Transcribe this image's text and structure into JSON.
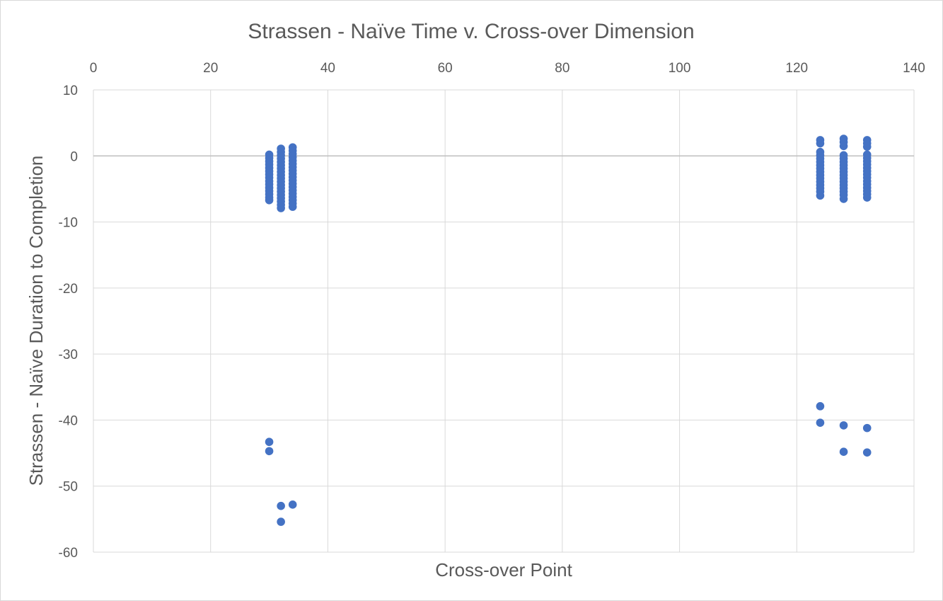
{
  "chart_data": {
    "type": "scatter",
    "title": "Strassen - Naïve Time v. Cross-over Dimension",
    "xlabel": "Cross-over Point",
    "ylabel": "Strassen - Naïve Duration to Completion",
    "xlim": [
      0,
      140
    ],
    "ylim": [
      -60,
      10
    ],
    "x_ticks": [
      0,
      20,
      40,
      60,
      80,
      100,
      120,
      140
    ],
    "y_ticks": [
      10,
      0,
      -10,
      -20,
      -30,
      -40,
      -50,
      -60
    ],
    "x_axis_position": "top",
    "grid": true,
    "legend": "none",
    "marker_color": "#4472c4",
    "points": [
      [
        30,
        0.2
      ],
      [
        30,
        -0.3
      ],
      [
        30,
        -0.8
      ],
      [
        30,
        -1.3
      ],
      [
        30,
        -1.8
      ],
      [
        30,
        -2.3
      ],
      [
        30,
        -2.8
      ],
      [
        30,
        -3.3
      ],
      [
        30,
        -3.8
      ],
      [
        30,
        -4.3
      ],
      [
        30,
        -4.8
      ],
      [
        30,
        -5.3
      ],
      [
        30,
        -5.8
      ],
      [
        30,
        -6.3
      ],
      [
        30,
        -6.7
      ],
      [
        30,
        -43.3
      ],
      [
        30,
        -44.7
      ],
      [
        32,
        1.1
      ],
      [
        32,
        0.6
      ],
      [
        32,
        0.1
      ],
      [
        32,
        -0.4
      ],
      [
        32,
        -0.9
      ],
      [
        32,
        -1.4
      ],
      [
        32,
        -1.9
      ],
      [
        32,
        -2.4
      ],
      [
        32,
        -2.9
      ],
      [
        32,
        -3.4
      ],
      [
        32,
        -3.9
      ],
      [
        32,
        -4.4
      ],
      [
        32,
        -4.9
      ],
      [
        32,
        -5.4
      ],
      [
        32,
        -5.9
      ],
      [
        32,
        -6.4
      ],
      [
        32,
        -6.9
      ],
      [
        32,
        -7.4
      ],
      [
        32,
        -7.9
      ],
      [
        32,
        -53.0
      ],
      [
        32,
        -55.4
      ],
      [
        34,
        1.3
      ],
      [
        34,
        0.8
      ],
      [
        34,
        0.3
      ],
      [
        34,
        -0.2
      ],
      [
        34,
        -0.7
      ],
      [
        34,
        -1.2
      ],
      [
        34,
        -1.7
      ],
      [
        34,
        -2.2
      ],
      [
        34,
        -2.7
      ],
      [
        34,
        -3.2
      ],
      [
        34,
        -3.7
      ],
      [
        34,
        -4.2
      ],
      [
        34,
        -4.7
      ],
      [
        34,
        -5.2
      ],
      [
        34,
        -5.7
      ],
      [
        34,
        -6.2
      ],
      [
        34,
        -6.7
      ],
      [
        34,
        -7.2
      ],
      [
        34,
        -7.7
      ],
      [
        34,
        -52.8
      ],
      [
        124,
        2.4
      ],
      [
        124,
        1.9
      ],
      [
        124,
        0.6
      ],
      [
        124,
        0.1
      ],
      [
        124,
        -0.4
      ],
      [
        124,
        -0.9
      ],
      [
        124,
        -1.4
      ],
      [
        124,
        -1.9
      ],
      [
        124,
        -2.4
      ],
      [
        124,
        -2.9
      ],
      [
        124,
        -3.4
      ],
      [
        124,
        -3.9
      ],
      [
        124,
        -4.4
      ],
      [
        124,
        -4.9
      ],
      [
        124,
        -5.4
      ],
      [
        124,
        -6.0
      ],
      [
        124,
        -37.9
      ],
      [
        124,
        -40.4
      ],
      [
        128,
        2.6
      ],
      [
        128,
        2.1
      ],
      [
        128,
        1.5
      ],
      [
        128,
        0.1
      ],
      [
        128,
        -0.4
      ],
      [
        128,
        -0.9
      ],
      [
        128,
        -1.4
      ],
      [
        128,
        -1.9
      ],
      [
        128,
        -2.4
      ],
      [
        128,
        -2.9
      ],
      [
        128,
        -3.4
      ],
      [
        128,
        -3.9
      ],
      [
        128,
        -4.4
      ],
      [
        128,
        -4.9
      ],
      [
        128,
        -5.4
      ],
      [
        128,
        -5.9
      ],
      [
        128,
        -6.5
      ],
      [
        128,
        -40.8
      ],
      [
        128,
        -44.8
      ],
      [
        132,
        2.4
      ],
      [
        132,
        1.9
      ],
      [
        132,
        1.4
      ],
      [
        132,
        0.2
      ],
      [
        132,
        -0.3
      ],
      [
        132,
        -0.8
      ],
      [
        132,
        -1.3
      ],
      [
        132,
        -1.8
      ],
      [
        132,
        -2.3
      ],
      [
        132,
        -2.8
      ],
      [
        132,
        -3.3
      ],
      [
        132,
        -3.8
      ],
      [
        132,
        -4.3
      ],
      [
        132,
        -4.8
      ],
      [
        132,
        -5.3
      ],
      [
        132,
        -5.8
      ],
      [
        132,
        -6.3
      ],
      [
        132,
        -41.2
      ],
      [
        132,
        -44.9
      ]
    ]
  }
}
